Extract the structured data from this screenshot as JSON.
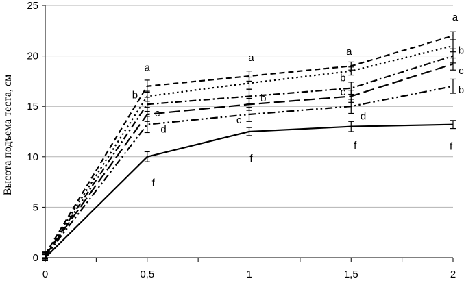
{
  "chart_data": {
    "type": "line",
    "ylabel": "Высота подъема теста, см",
    "xlabel": "",
    "xlim": [
      0,
      2
    ],
    "ylim": [
      0,
      25
    ],
    "grid": true,
    "x": [
      0,
      0.5,
      1,
      1.5,
      2
    ],
    "x_tick_labels": [
      "0",
      "0,5",
      "1",
      "1,5",
      "2"
    ],
    "y_ticks": [
      0,
      5,
      10,
      15,
      20,
      25
    ],
    "y_tick_labels": [
      "0",
      "5",
      "10",
      "15",
      "20",
      "25"
    ],
    "series": [
      {
        "dash": "8,5",
        "values": [
          0.3,
          17.0,
          18.0,
          19.0,
          22.0
        ],
        "errors": [
          0.3,
          0.6,
          0.5,
          0.4,
          0.4
        ]
      },
      {
        "dash": "2.5,4",
        "values": [
          0.3,
          16.0,
          17.3,
          18.5,
          21.0
        ],
        "errors": [
          0.3,
          0.5,
          0.6,
          0.4,
          0.6
        ]
      },
      {
        "dash": "10,4,2.5,4",
        "values": [
          0.2,
          15.2,
          16.0,
          16.8,
          20.0
        ],
        "errors": [
          0.3,
          0.7,
          0.7,
          0.6,
          0.7
        ]
      },
      {
        "dash": "16,6",
        "values": [
          0.2,
          14.2,
          15.2,
          16.0,
          19.2
        ],
        "errors": [
          0.3,
          0.7,
          0.6,
          0.6,
          0.6
        ]
      },
      {
        "dash": "11,4,2.5,4,2.5,4",
        "values": [
          0.1,
          13.2,
          14.2,
          15.0,
          17.0
        ],
        "errors": [
          0.3,
          0.8,
          0.7,
          0.7,
          0.7
        ]
      },
      {
        "dash": "",
        "values": [
          0.0,
          10.0,
          12.5,
          13.0,
          13.2
        ],
        "errors": [
          0.3,
          0.5,
          0.4,
          0.5,
          0.4
        ]
      }
    ],
    "annotations": [
      {
        "text": "a",
        "x": 0.5,
        "y": 18.5
      },
      {
        "text": "b",
        "x": 0.44,
        "y": 15.8
      },
      {
        "text": "c",
        "x": 0.55,
        "y": 14.0
      },
      {
        "text": "d",
        "x": 0.58,
        "y": 12.4
      },
      {
        "text": "f",
        "x": 0.53,
        "y": 7.1
      },
      {
        "text": "a",
        "x": 1.01,
        "y": 19.5
      },
      {
        "text": "b",
        "x": 1.07,
        "y": 15.5
      },
      {
        "text": "c",
        "x": 0.95,
        "y": 13.3
      },
      {
        "text": "f",
        "x": 1.01,
        "y": 9.5
      },
      {
        "text": "a",
        "x": 1.49,
        "y": 20.1
      },
      {
        "text": "b",
        "x": 1.46,
        "y": 17.5
      },
      {
        "text": "c",
        "x": 1.46,
        "y": 16.1
      },
      {
        "text": "d",
        "x": 1.56,
        "y": 13.7
      },
      {
        "text": "f",
        "x": 1.52,
        "y": 10.8
      },
      {
        "text": "a",
        "x": 2.01,
        "y": 23.5
      },
      {
        "text": "b",
        "x": 2.04,
        "y": 20.2
      },
      {
        "text": "c",
        "x": 2.04,
        "y": 18.2
      },
      {
        "text": "b",
        "x": 2.04,
        "y": 16.3
      },
      {
        "text": "f",
        "x": 1.99,
        "y": 10.7
      }
    ]
  }
}
